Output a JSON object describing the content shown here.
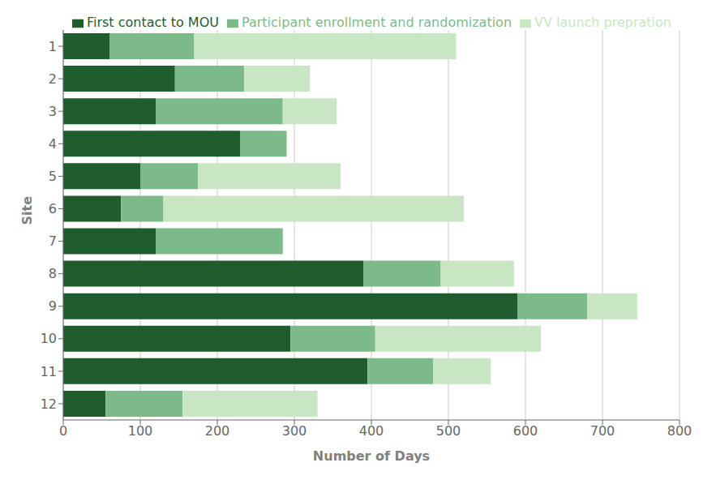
{
  "chart_data": {
    "type": "bar",
    "orientation": "horizontal",
    "stacked": true,
    "categories": [
      "1",
      "2",
      "3",
      "4",
      "5",
      "6",
      "7",
      "8",
      "9",
      "10",
      "11",
      "12"
    ],
    "series": [
      {
        "name": "First contact to MOU",
        "color": "#1f5c2e",
        "values": [
          60,
          145,
          120,
          230,
          100,
          75,
          120,
          390,
          590,
          295,
          395,
          55
        ]
      },
      {
        "name": "Participant enrollment and randomization",
        "color": "#7dba8a",
        "values": [
          110,
          90,
          165,
          60,
          75,
          55,
          165,
          100,
          90,
          110,
          85,
          100
        ]
      },
      {
        "name": "VV launch prepration",
        "color": "#c8e6c4",
        "values": [
          340,
          85,
          70,
          0,
          185,
          390,
          0,
          95,
          65,
          215,
          75,
          175
        ]
      }
    ],
    "xlabel": "Number of Days",
    "ylabel": "Site",
    "xlim": [
      0,
      800
    ],
    "xticks": [
      0,
      100,
      200,
      300,
      400,
      500,
      600,
      700,
      800
    ],
    "grid": true,
    "legend": "upper right"
  }
}
